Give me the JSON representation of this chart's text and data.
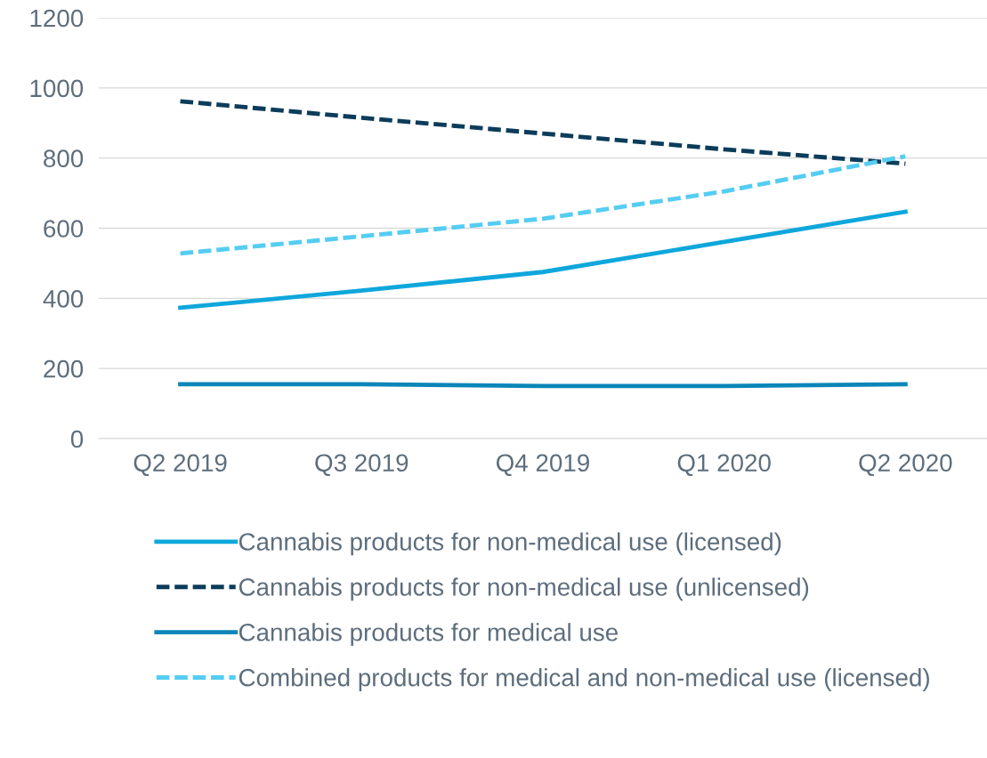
{
  "chart_data": {
    "type": "line",
    "categories": [
      "Q2 2019",
      "Q3 2019",
      "Q4 2019",
      "Q1 2020",
      "Q2 2020"
    ],
    "series": [
      {
        "name": "Cannabis products for non-medical use (licensed)",
        "color": "#0ea7dc",
        "line_style": "solid",
        "values": [
          373,
          422,
          475,
          561,
          647
        ]
      },
      {
        "name": "Cannabis products for non-medical use (unlicensed)",
        "color": "#0c3c5a",
        "line_style": "dashed",
        "values": [
          962,
          915,
          870,
          825,
          784
        ]
      },
      {
        "name": "Cannabis products for medical use",
        "color": "#0b86b8",
        "line_style": "solid",
        "values": [
          155,
          155,
          150,
          150,
          155
        ]
      },
      {
        "name": "Combined products for medical and non-medical use (licensed)",
        "color": "#55cdf2",
        "line_style": "dashed",
        "values": [
          528,
          577,
          627,
          705,
          805
        ]
      }
    ],
    "ylim": [
      0,
      1200
    ],
    "yticks": [
      0,
      200,
      400,
      600,
      800,
      1000,
      1200
    ],
    "grid": "y",
    "legend": "bottom",
    "marker": "none"
  }
}
